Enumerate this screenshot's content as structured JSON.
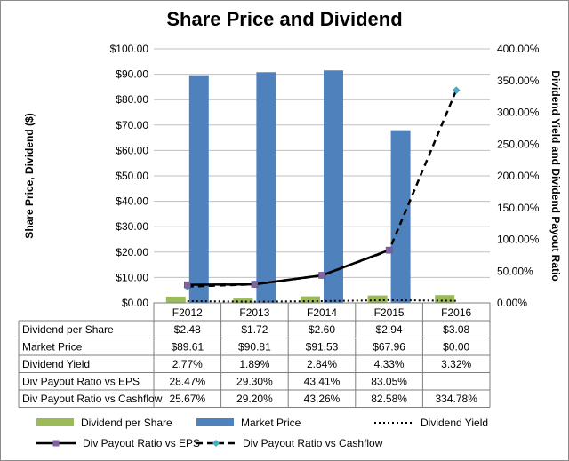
{
  "chart_data": {
    "type": "bar",
    "title": "Share Price and Dividend",
    "ylabel_left": "Share Price, Dividend ($)",
    "ylabel_right": "Dividend Yield and Dividend Payout Ratio",
    "ylim_left": [
      0,
      100
    ],
    "ylim_right": [
      0,
      400
    ],
    "left_ticks": [
      "$0.00",
      "$10.00",
      "$20.00",
      "$30.00",
      "$40.00",
      "$50.00",
      "$60.00",
      "$70.00",
      "$80.00",
      "$90.00",
      "$100.00"
    ],
    "right_ticks": [
      "0.00%",
      "50.00%",
      "100.00%",
      "150.00%",
      "200.00%",
      "250.00%",
      "300.00%",
      "350.00%",
      "400.00%"
    ],
    "categories": [
      "F2012",
      "F2013",
      "F2014",
      "F2015",
      "F2016"
    ],
    "grid": true,
    "legend_position": "bottom",
    "series": [
      {
        "name": "Dividend per Share",
        "type": "bar",
        "axis": "left",
        "color": "#9bbb59",
        "values": [
          2.48,
          1.72,
          2.6,
          2.94,
          3.08
        ],
        "labels": [
          "$2.48",
          "$1.72",
          "$2.60",
          "$2.94",
          "$3.08"
        ]
      },
      {
        "name": "Market Price",
        "type": "bar",
        "axis": "left",
        "color": "#4f81bd",
        "values": [
          89.61,
          90.81,
          91.53,
          67.96,
          0.0
        ],
        "labels": [
          "$89.61",
          "$90.81",
          "$91.53",
          "$67.96",
          "$0.00"
        ]
      },
      {
        "name": "Dividend Yield",
        "type": "line",
        "axis": "right",
        "color": "#000000",
        "style": "dotted",
        "values": [
          2.77,
          1.89,
          2.84,
          4.33,
          3.32
        ],
        "labels": [
          "2.77%",
          "1.89%",
          "2.84%",
          "4.33%",
          "3.32%"
        ]
      },
      {
        "name": "Div Payout Ratio vs EPS",
        "type": "line",
        "axis": "right",
        "color": "#000000",
        "style": "solid",
        "marker_color": "#8064a2",
        "values": [
          28.47,
          29.3,
          43.41,
          83.05,
          null
        ],
        "labels": [
          "28.47%",
          "29.30%",
          "43.41%",
          "83.05%",
          ""
        ]
      },
      {
        "name": "Div Payout Ratio vs Cashflow",
        "type": "line",
        "axis": "right",
        "color": "#000000",
        "style": "dashed",
        "marker_color": "#4bacc6",
        "values": [
          25.67,
          29.2,
          43.26,
          82.58,
          334.78
        ],
        "labels": [
          "25.67%",
          "29.20%",
          "43.26%",
          "82.58%",
          "334.78%"
        ]
      }
    ]
  }
}
